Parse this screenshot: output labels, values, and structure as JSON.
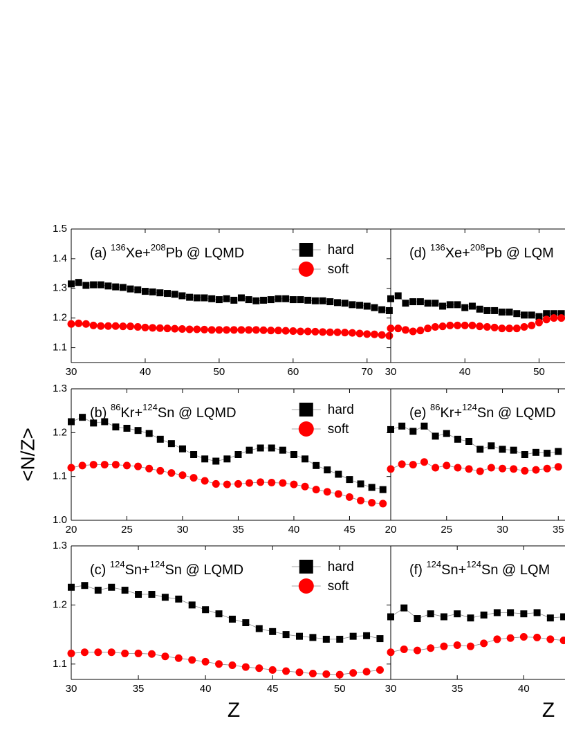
{
  "chart_data": [
    {
      "type": "line",
      "title": [
        "(a) ",
        {
          "sup": "136"
        },
        "Xe+",
        {
          "sup": "208"
        },
        "Pb @ LQMD"
      ],
      "legend": true,
      "x": [
        30,
        31,
        32,
        33,
        34,
        35,
        36,
        37,
        38,
        39,
        40,
        41,
        42,
        43,
        44,
        45,
        46,
        47,
        48,
        49,
        50,
        51,
        52,
        53,
        54,
        55,
        56,
        57,
        58,
        59,
        60,
        61,
        62,
        63,
        64,
        65,
        66,
        67,
        68,
        69,
        70,
        71,
        72,
        73
      ],
      "xlim": [
        30,
        73.2
      ],
      "xticks": [
        30,
        40,
        50,
        60,
        70
      ],
      "ylim": [
        1.05,
        1.5
      ],
      "yticks": [
        1.1,
        1.2,
        1.3,
        1.4,
        1.5
      ],
      "series": [
        {
          "name": "hard",
          "color": "#000000",
          "marker": "square",
          "values": [
            1.315,
            1.32,
            1.31,
            1.312,
            1.312,
            1.308,
            1.305,
            1.303,
            1.298,
            1.295,
            1.29,
            1.288,
            1.285,
            1.283,
            1.28,
            1.275,
            1.27,
            1.268,
            1.268,
            1.265,
            1.262,
            1.265,
            1.26,
            1.268,
            1.262,
            1.258,
            1.26,
            1.262,
            1.265,
            1.265,
            1.262,
            1.262,
            1.26,
            1.258,
            1.258,
            1.255,
            1.252,
            1.25,
            1.245,
            1.243,
            1.24,
            1.235,
            1.228,
            1.225
          ]
        },
        {
          "name": "soft",
          "color": "#ff0000",
          "marker": "circle",
          "values": [
            1.18,
            1.182,
            1.18,
            1.175,
            1.173,
            1.173,
            1.173,
            1.172,
            1.172,
            1.17,
            1.168,
            1.167,
            1.166,
            1.165,
            1.164,
            1.163,
            1.162,
            1.162,
            1.161,
            1.16,
            1.16,
            1.16,
            1.16,
            1.16,
            1.16,
            1.16,
            1.159,
            1.158,
            1.158,
            1.157,
            1.156,
            1.155,
            1.155,
            1.154,
            1.153,
            1.152,
            1.152,
            1.151,
            1.15,
            1.148,
            1.146,
            1.145,
            1.143,
            1.14
          ]
        }
      ]
    },
    {
      "type": "line",
      "title": [
        "(b) ",
        {
          "sup": "86"
        },
        "Kr+",
        {
          "sup": "124"
        },
        "Sn @ LQMD"
      ],
      "legend": true,
      "ylabel": "<N/Z>",
      "x": [
        20,
        21,
        22,
        23,
        24,
        25,
        26,
        27,
        28,
        29,
        30,
        31,
        32,
        33,
        34,
        35,
        36,
        37,
        38,
        39,
        40,
        41,
        42,
        43,
        44,
        45,
        46,
        47,
        48
      ],
      "xlim": [
        20,
        48.7
      ],
      "xticks": [
        20,
        25,
        30,
        35,
        40,
        45
      ],
      "ylim": [
        1.0,
        1.3
      ],
      "yticks": [
        {
          "value": 1.0,
          "label": "1.0"
        },
        1.1,
        1.2,
        1.3
      ],
      "series": [
        {
          "name": "hard",
          "color": "#000000",
          "marker": "square",
          "values": [
            1.225,
            1.235,
            1.222,
            1.225,
            1.213,
            1.21,
            1.205,
            1.198,
            1.185,
            1.175,
            1.163,
            1.15,
            1.14,
            1.135,
            1.14,
            1.15,
            1.16,
            1.165,
            1.165,
            1.16,
            1.15,
            1.14,
            1.125,
            1.115,
            1.105,
            1.093,
            1.083,
            1.075,
            1.07
          ]
        },
        {
          "name": "soft",
          "color": "#ff0000",
          "marker": "circle",
          "values": [
            1.12,
            1.125,
            1.127,
            1.127,
            1.127,
            1.125,
            1.123,
            1.118,
            1.113,
            1.108,
            1.103,
            1.097,
            1.09,
            1.083,
            1.082,
            1.083,
            1.085,
            1.087,
            1.086,
            1.085,
            1.082,
            1.077,
            1.07,
            1.065,
            1.06,
            1.053,
            1.045,
            1.04,
            1.038
          ]
        }
      ]
    },
    {
      "type": "line",
      "title": [
        "(c) ",
        {
          "sup": "124"
        },
        "Sn+",
        {
          "sup": "124"
        },
        "Sn @ LQMD"
      ],
      "legend": true,
      "xlabel": "Z",
      "x": [
        30,
        31,
        32,
        33,
        34,
        35,
        36,
        37,
        38,
        39,
        40,
        41,
        42,
        43,
        44,
        45,
        46,
        47,
        48,
        49,
        50,
        51,
        52,
        53
      ],
      "xlim": [
        30,
        53.8
      ],
      "xticks": [
        30,
        35,
        40,
        45,
        50
      ],
      "ylim": [
        1.074,
        1.3
      ],
      "yticks": [
        1.1,
        1.2,
        1.3
      ],
      "series": [
        {
          "name": "hard",
          "color": "#000000",
          "marker": "square",
          "values": [
            1.23,
            1.233,
            1.225,
            1.23,
            1.225,
            1.218,
            1.218,
            1.213,
            1.21,
            1.2,
            1.192,
            1.185,
            1.176,
            1.17,
            1.16,
            1.155,
            1.15,
            1.147,
            1.145,
            1.142,
            1.142,
            1.147,
            1.148,
            1.143
          ]
        },
        {
          "name": "soft",
          "color": "#ff0000",
          "marker": "circle",
          "values": [
            1.118,
            1.12,
            1.12,
            1.12,
            1.118,
            1.118,
            1.117,
            1.113,
            1.11,
            1.107,
            1.104,
            1.1,
            1.098,
            1.095,
            1.093,
            1.09,
            1.088,
            1.086,
            1.084,
            1.083,
            1.082,
            1.085,
            1.087,
            1.09
          ]
        }
      ]
    },
    {
      "type": "line",
      "title": [
        "(d) ",
        {
          "sup": "136"
        },
        "Xe+",
        {
          "sup": "208"
        },
        "Pb @ LQM"
      ],
      "legend": false,
      "x": [
        30,
        31,
        32,
        33,
        34,
        35,
        36,
        37,
        38,
        39,
        40,
        41,
        42,
        43,
        44,
        45,
        46,
        47,
        48,
        49,
        50,
        51,
        52,
        53
      ],
      "xlim": [
        30,
        53.5
      ],
      "xticks": [
        30,
        40,
        50
      ],
      "ylim": [
        1.05,
        1.5
      ],
      "series": [
        {
          "name": "hard",
          "color": "#000000",
          "marker": "square",
          "values": [
            1.265,
            1.275,
            1.25,
            1.255,
            1.255,
            1.25,
            1.25,
            1.24,
            1.245,
            1.245,
            1.235,
            1.24,
            1.23,
            1.225,
            1.225,
            1.22,
            1.22,
            1.215,
            1.21,
            1.21,
            1.205,
            1.215,
            1.215,
            1.215
          ]
        },
        {
          "name": "soft",
          "color": "#ff0000",
          "marker": "circle",
          "values": [
            1.165,
            1.165,
            1.16,
            1.155,
            1.158,
            1.165,
            1.17,
            1.172,
            1.175,
            1.175,
            1.175,
            1.175,
            1.172,
            1.17,
            1.168,
            1.165,
            1.165,
            1.165,
            1.17,
            1.175,
            1.185,
            1.195,
            1.2,
            1.2
          ]
        }
      ]
    },
    {
      "type": "line",
      "title": [
        "(e) ",
        {
          "sup": "86"
        },
        "Kr+",
        {
          "sup": "124"
        },
        "Sn @ LQMD"
      ],
      "legend": false,
      "x": [
        20,
        21,
        22,
        23,
        24,
        25,
        26,
        27,
        28,
        29,
        30,
        31,
        32,
        33,
        34,
        35
      ],
      "xlim": [
        20,
        35.6
      ],
      "xticks": [
        20,
        25,
        30,
        35
      ],
      "ylim": [
        1.0,
        1.3
      ],
      "series": [
        {
          "name": "hard",
          "color": "#000000",
          "marker": "square",
          "values": [
            1.207,
            1.215,
            1.203,
            1.215,
            1.192,
            1.198,
            1.185,
            1.18,
            1.162,
            1.17,
            1.162,
            1.16,
            1.15,
            1.155,
            1.153,
            1.157
          ]
        },
        {
          "name": "soft",
          "color": "#ff0000",
          "marker": "circle",
          "values": [
            1.117,
            1.128,
            1.127,
            1.133,
            1.12,
            1.125,
            1.12,
            1.117,
            1.112,
            1.12,
            1.118,
            1.117,
            1.113,
            1.115,
            1.118,
            1.122
          ]
        }
      ]
    },
    {
      "type": "line",
      "title": [
        "(f) ",
        {
          "sup": "124"
        },
        "Sn+",
        {
          "sup": "124"
        },
        "Sn @ LQM"
      ],
      "legend": false,
      "xlabel": "Z",
      "x": [
        30,
        31,
        32,
        33,
        34,
        35,
        36,
        37,
        38,
        39,
        40,
        41,
        42,
        43
      ],
      "xlim": [
        30,
        43.1
      ],
      "xticks": [
        30,
        35,
        40
      ],
      "ylim": [
        1.074,
        1.3
      ],
      "series": [
        {
          "name": "hard",
          "color": "#000000",
          "marker": "square",
          "values": [
            1.18,
            1.195,
            1.177,
            1.185,
            1.18,
            1.185,
            1.178,
            1.183,
            1.187,
            1.187,
            1.185,
            1.187,
            1.178,
            1.18
          ]
        },
        {
          "name": "soft",
          "color": "#ff0000",
          "marker": "circle",
          "values": [
            1.12,
            1.125,
            1.123,
            1.127,
            1.13,
            1.132,
            1.13,
            1.135,
            1.142,
            1.144,
            1.146,
            1.145,
            1.142,
            1.14
          ]
        }
      ]
    }
  ]
}
